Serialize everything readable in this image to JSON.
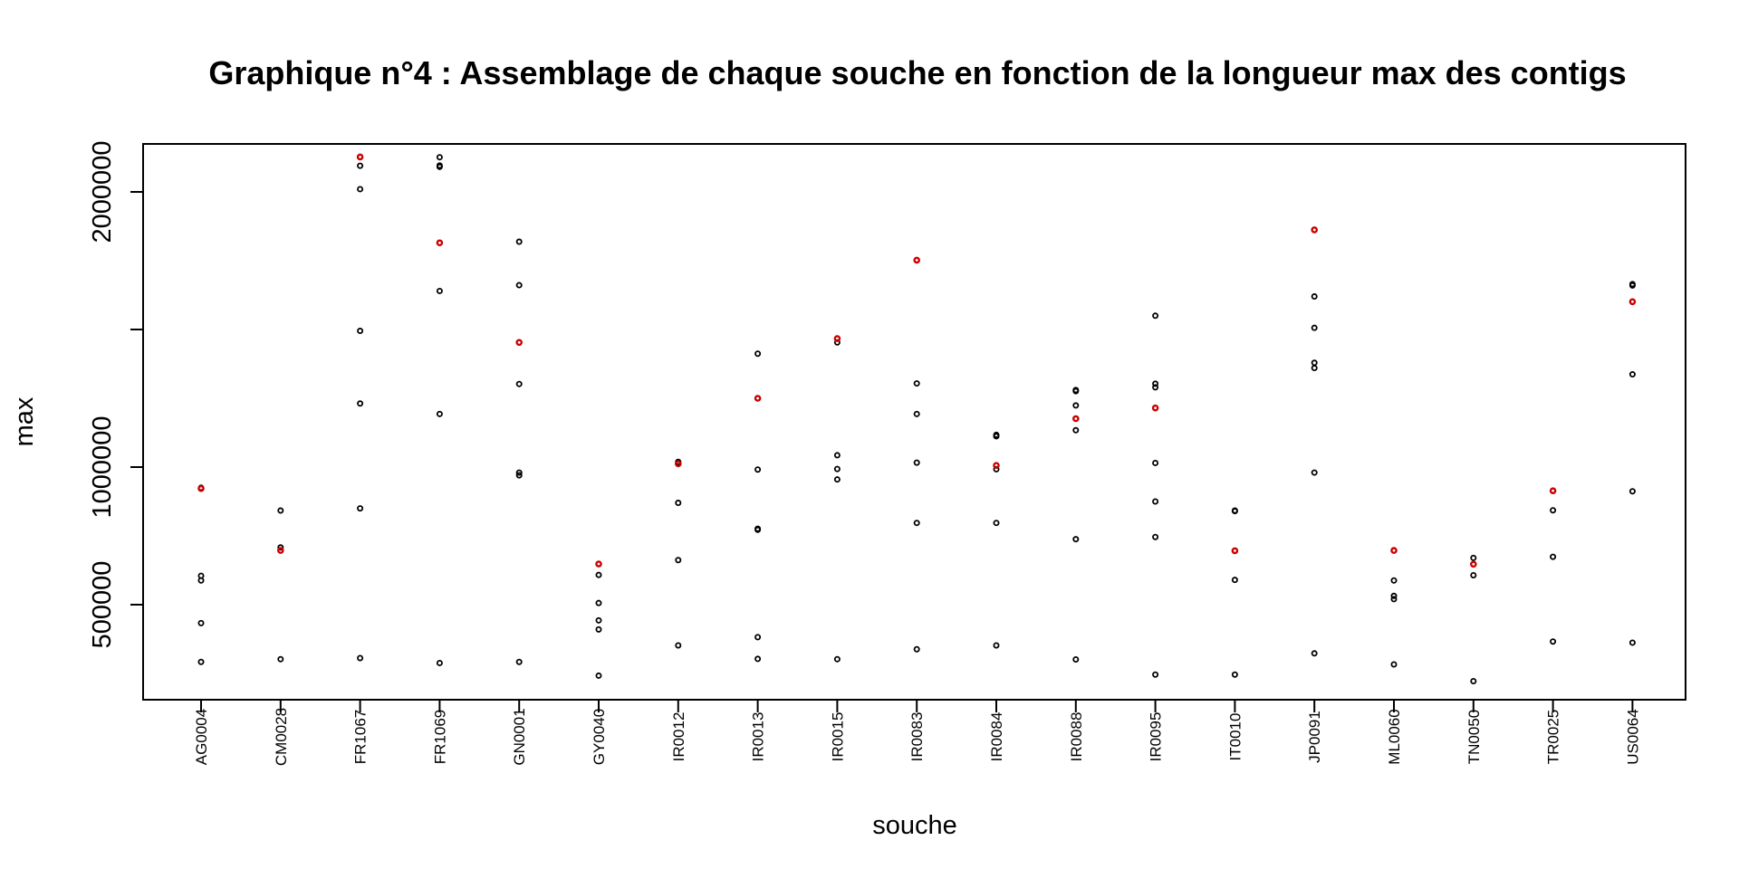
{
  "chart_data": {
    "type": "scatter",
    "title": "Graphique n°4 : Assemblage de chaque souche en fonction de la longueur max des contigs",
    "xlabel": "souche",
    "ylabel": "max",
    "ylim": [
      150000,
      2180000
    ],
    "yticks": [
      500000,
      1000000,
      1500000,
      2000000
    ],
    "ytick_labels": [
      "500000",
      "1000000",
      "",
      "2000000"
    ],
    "grid": false,
    "categories": [
      "AG0004",
      "CM0028",
      "FR1067",
      "FR1069",
      "GN0001",
      "GY0040",
      "IR0012",
      "IR0013",
      "IR0015",
      "IR0083",
      "IR0084",
      "IR0088",
      "IR0095",
      "IT0010",
      "JP0091",
      "ML0060",
      "TN0050",
      "TR0025",
      "US0064"
    ],
    "colors": {
      "points": "#000000",
      "highlight": "#cc0000"
    },
    "series": [
      {
        "color": "#000000",
        "points": [
          {
            "x": "AG0004",
            "y": 925000
          },
          {
            "x": "AG0004",
            "y": 605000
          },
          {
            "x": "AG0004",
            "y": 588000
          },
          {
            "x": "AG0004",
            "y": 433000
          },
          {
            "x": "AG0004",
            "y": 292000
          },
          {
            "x": "CM0028",
            "y": 842000
          },
          {
            "x": "CM0028",
            "y": 708000
          },
          {
            "x": "CM0028",
            "y": 302000
          },
          {
            "x": "FR1067",
            "y": 2095000
          },
          {
            "x": "FR1067",
            "y": 2010000
          },
          {
            "x": "FR1067",
            "y": 1495000
          },
          {
            "x": "FR1067",
            "y": 1231000
          },
          {
            "x": "FR1067",
            "y": 850000
          },
          {
            "x": "FR1067",
            "y": 306000
          },
          {
            "x": "FR1069",
            "y": 2126000
          },
          {
            "x": "FR1069",
            "y": 2096000
          },
          {
            "x": "FR1069",
            "y": 2091000
          },
          {
            "x": "FR1069",
            "y": 1640000
          },
          {
            "x": "FR1069",
            "y": 1193000
          },
          {
            "x": "FR1069",
            "y": 288000
          },
          {
            "x": "GN0001",
            "y": 1819000
          },
          {
            "x": "GN0001",
            "y": 1661000
          },
          {
            "x": "GN0001",
            "y": 1302000
          },
          {
            "x": "GN0001",
            "y": 980000
          },
          {
            "x": "GN0001",
            "y": 970000
          },
          {
            "x": "GN0001",
            "y": 292000
          },
          {
            "x": "GY0040",
            "y": 608000
          },
          {
            "x": "GY0040",
            "y": 506000
          },
          {
            "x": "GY0040",
            "y": 443000
          },
          {
            "x": "GY0040",
            "y": 410000
          },
          {
            "x": "GY0040",
            "y": 242000
          },
          {
            "x": "IR0012",
            "y": 1019000
          },
          {
            "x": "IR0012",
            "y": 870000
          },
          {
            "x": "IR0012",
            "y": 662000
          },
          {
            "x": "IR0012",
            "y": 352000
          },
          {
            "x": "IR0013",
            "y": 1412000
          },
          {
            "x": "IR0013",
            "y": 991000
          },
          {
            "x": "IR0013",
            "y": 776000
          },
          {
            "x": "IR0013",
            "y": 772000
          },
          {
            "x": "IR0013",
            "y": 382000
          },
          {
            "x": "IR0013",
            "y": 303000
          },
          {
            "x": "IR0015",
            "y": 1453000
          },
          {
            "x": "IR0015",
            "y": 1043000
          },
          {
            "x": "IR0015",
            "y": 993000
          },
          {
            "x": "IR0015",
            "y": 955000
          },
          {
            "x": "IR0015",
            "y": 302000
          },
          {
            "x": "IR0083",
            "y": 1304000
          },
          {
            "x": "IR0083",
            "y": 1193000
          },
          {
            "x": "IR0083",
            "y": 1016000
          },
          {
            "x": "IR0083",
            "y": 797000
          },
          {
            "x": "IR0083",
            "y": 338000
          },
          {
            "x": "IR0084",
            "y": 1117000
          },
          {
            "x": "IR0084",
            "y": 1112000
          },
          {
            "x": "IR0084",
            "y": 992000
          },
          {
            "x": "IR0084",
            "y": 797000
          },
          {
            "x": "IR0084",
            "y": 352000
          },
          {
            "x": "IR0088",
            "y": 1280000
          },
          {
            "x": "IR0088",
            "y": 1276000
          },
          {
            "x": "IR0088",
            "y": 1224000
          },
          {
            "x": "IR0088",
            "y": 1134000
          },
          {
            "x": "IR0088",
            "y": 738000
          },
          {
            "x": "IR0088",
            "y": 301000
          },
          {
            "x": "IR0095",
            "y": 1550000
          },
          {
            "x": "IR0095",
            "y": 1303000
          },
          {
            "x": "IR0095",
            "y": 1290000
          },
          {
            "x": "IR0095",
            "y": 1015000
          },
          {
            "x": "IR0095",
            "y": 875000
          },
          {
            "x": "IR0095",
            "y": 746000
          },
          {
            "x": "IR0095",
            "y": 246000
          },
          {
            "x": "IT0010",
            "y": 842000
          },
          {
            "x": "IT0010",
            "y": 840000
          },
          {
            "x": "IT0010",
            "y": 590000
          },
          {
            "x": "IT0010",
            "y": 246000
          },
          {
            "x": "JP0091",
            "y": 1620000
          },
          {
            "x": "JP0091",
            "y": 1506000
          },
          {
            "x": "JP0091",
            "y": 1379000
          },
          {
            "x": "JP0091",
            "y": 1360000
          },
          {
            "x": "JP0091",
            "y": 980000
          },
          {
            "x": "JP0091",
            "y": 323000
          },
          {
            "x": "ML0060",
            "y": 588000
          },
          {
            "x": "ML0060",
            "y": 532000
          },
          {
            "x": "ML0060",
            "y": 520000
          },
          {
            "x": "ML0060",
            "y": 283000
          },
          {
            "x": "TN0050",
            "y": 670000
          },
          {
            "x": "TN0050",
            "y": 607000
          },
          {
            "x": "TN0050",
            "y": 222000
          },
          {
            "x": "TR0025",
            "y": 843000
          },
          {
            "x": "TR0025",
            "y": 674000
          },
          {
            "x": "TR0025",
            "y": 366000
          },
          {
            "x": "US0064",
            "y": 1665000
          },
          {
            "x": "US0064",
            "y": 1660000
          },
          {
            "x": "US0064",
            "y": 1337000
          },
          {
            "x": "US0064",
            "y": 912000
          },
          {
            "x": "US0064",
            "y": 362000
          }
        ]
      },
      {
        "color": "#cc0000",
        "points": [
          {
            "x": "AG0004",
            "y": 922000
          },
          {
            "x": "CM0028",
            "y": 697000
          },
          {
            "x": "FR1067",
            "y": 2127000
          },
          {
            "x": "FR1069",
            "y": 1815000
          },
          {
            "x": "GN0001",
            "y": 1453000
          },
          {
            "x": "GY0040",
            "y": 648000
          },
          {
            "x": "IR0012",
            "y": 1012000
          },
          {
            "x": "IR0013",
            "y": 1250000
          },
          {
            "x": "IR0015",
            "y": 1467000
          },
          {
            "x": "IR0083",
            "y": 1752000
          },
          {
            "x": "IR0084",
            "y": 1006000
          },
          {
            "x": "IR0088",
            "y": 1176000
          },
          {
            "x": "IR0095",
            "y": 1215000
          },
          {
            "x": "IT0010",
            "y": 696000
          },
          {
            "x": "JP0091",
            "y": 1862000
          },
          {
            "x": "ML0060",
            "y": 697000
          },
          {
            "x": "TN0050",
            "y": 647000
          },
          {
            "x": "TR0025",
            "y": 914000
          },
          {
            "x": "US0064",
            "y": 1601000
          }
        ]
      }
    ]
  }
}
